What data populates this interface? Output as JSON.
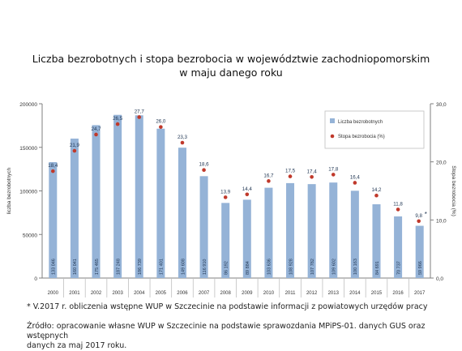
{
  "chart_data": {
    "type": "bar",
    "title_line1": "Liczba bezrobotnych i stopa bezrobocia w województwie zachodniopomorskim",
    "title_line2": "w maju danego roku",
    "ylabel_left": "liczba bezrobotnych",
    "ylabel_right": "Stopa bezrobocia (%)",
    "ylim_left": [
      0,
      200000
    ],
    "ylim_right": [
      0,
      30
    ],
    "left_ticks": [
      "0",
      "50000",
      "100000",
      "150000",
      "200000"
    ],
    "right_ticks": [
      "0,0",
      "10,0",
      "20,0",
      "30,0"
    ],
    "categories": [
      "2000",
      "2001",
      "2002",
      "2003",
      "2004",
      "2005",
      "2006",
      "2007",
      "2008",
      "2009",
      "2010",
      "2011",
      "2012",
      "2013",
      "2014",
      "2015",
      "2016",
      "2017"
    ],
    "series": [
      {
        "name": "Liczba bezrobotnych",
        "type": "bar",
        "axis": "left",
        "color": "#95b3d7",
        "values": [
          133046,
          160041,
          175465,
          187248,
          186739,
          171401,
          149608,
          116910,
          86192,
          89884,
          103636,
          108928,
          107782,
          109602,
          100163,
          84691,
          70737,
          59966
        ],
        "labels": [
          "133 046",
          "160 041",
          "175 465",
          "187 248",
          "186 739",
          "171 401",
          "149 608",
          "116 910",
          "86 192",
          "89 884",
          "103 636",
          "108 928",
          "107 782",
          "109 602",
          "100 163",
          "84 691",
          "70 737",
          "59 966"
        ]
      },
      {
        "name": "Stopa bezrobocia (%)",
        "type": "scatter",
        "axis": "right",
        "color": "#c0392b",
        "values": [
          18.4,
          21.9,
          24.7,
          26.5,
          27.7,
          26.0,
          23.3,
          18.6,
          13.9,
          14.4,
          16.7,
          17.5,
          17.4,
          17.8,
          16.4,
          14.2,
          11.8,
          9.8
        ],
        "labels": [
          "18,4",
          "21,9",
          "24,7",
          "26,5",
          "27,7",
          "26,0",
          "23,3",
          "18,6",
          "13,9",
          "14,4",
          "16,7",
          "17,5",
          "17,4",
          "17,8",
          "16,4",
          "14,2",
          "11,8",
          "9,8"
        ]
      }
    ],
    "annotations": [
      "*"
    ],
    "legend_placement": "top-right",
    "grid": false
  },
  "notes": {
    "footnote": "* V.2017 r.  obliczenia wstępne WUP w Szczecinie na podstawie informacji z powiatowych urzędów pracy",
    "source_line1": "Źródło: opracowanie własne WUP w Szczecinie na podstawie sprawozdania MPiPS-01. danych GUS oraz wstępnych",
    "source_line2": "danych za maj 2017 roku."
  }
}
